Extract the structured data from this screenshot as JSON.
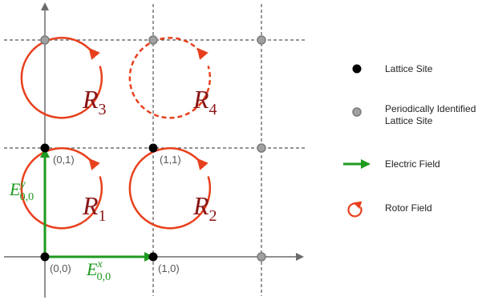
{
  "colors": {
    "axis": "#6a6a6a",
    "grid": "#555555",
    "lattice_site": "#000000",
    "periodic_site": "#a0a0a0",
    "electric_field": "#1e9a1e",
    "rotor": "#e8401c",
    "rotor_label": "#8a1515"
  },
  "coords": {
    "c00": "(0,0)",
    "c10": "(1,0)",
    "c01": "(0,1)",
    "c11": "(1,1)"
  },
  "rotors": {
    "r1": {
      "base": "R",
      "sub": "1"
    },
    "r2": {
      "base": "R",
      "sub": "2"
    },
    "r3": {
      "base": "R",
      "sub": "3"
    },
    "r4": {
      "base": "R",
      "sub": "4"
    }
  },
  "fields": {
    "ex": {
      "base": "E",
      "sup": "x",
      "sub": "0,0"
    },
    "ey": {
      "base": "E",
      "sup": "y",
      "sub": "0,0"
    }
  },
  "legend": {
    "lattice_site": "Lattice Site",
    "periodic_line1": "Periodically Identified",
    "periodic_line2": "Lattice Site",
    "electric_field": "Electric Field",
    "rotor_field": "Rotor Field"
  },
  "icons": {
    "lattice_site": "filled-black-dot",
    "periodic_site": "gray-dot",
    "electric_field": "green-arrow",
    "rotor_field": "red-circular-arrow"
  }
}
